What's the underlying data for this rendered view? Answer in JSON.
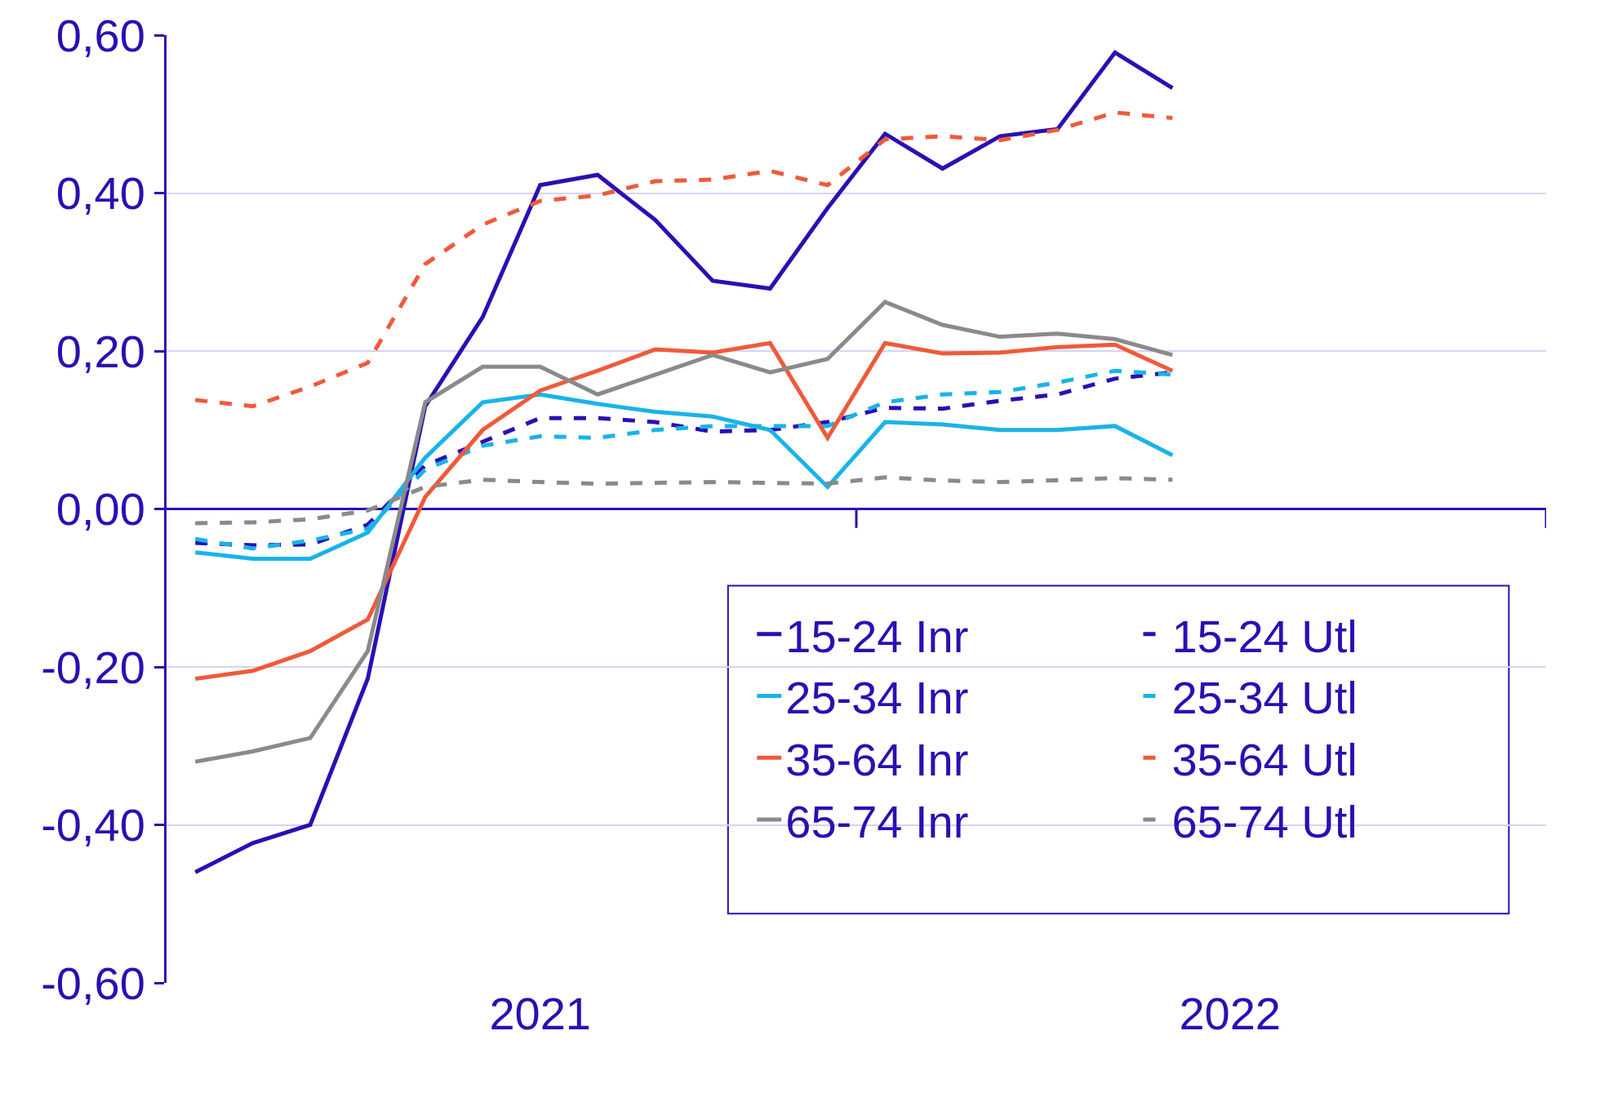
{
  "chart_data": {
    "type": "line",
    "categories": [
      null,
      null,
      null,
      null,
      null,
      null,
      "2021",
      null,
      null,
      null,
      null,
      null,
      null,
      null,
      null,
      null,
      null,
      null,
      "2022",
      null,
      null,
      null,
      null,
      null
    ],
    "series": [
      {
        "name": "15-24 Inr",
        "color": "#2b0fb3",
        "line_style": "solid",
        "values": [
          -0.46,
          -0.423,
          -0.4,
          -0.215,
          0.13,
          0.243,
          0.41,
          0.423,
          0.366,
          0.289,
          0.279,
          0.381,
          0.475,
          0.431,
          0.472,
          0.481,
          0.578,
          0.533,
          null,
          null,
          null,
          null,
          null,
          null
        ]
      },
      {
        "name": "15-24 Utl",
        "color": "#2b0fb3",
        "line_style": "dash",
        "values": [
          -0.043,
          -0.046,
          -0.045,
          -0.02,
          0.055,
          0.085,
          0.115,
          0.115,
          0.11,
          0.098,
          0.1,
          0.11,
          0.128,
          0.127,
          0.137,
          0.145,
          0.165,
          0.173,
          null,
          null,
          null,
          null,
          null,
          null
        ]
      },
      {
        "name": "25-34 Inr",
        "color": "#1ab3e8",
        "line_style": "solid",
        "values": [
          -0.055,
          -0.063,
          -0.063,
          -0.03,
          0.065,
          0.135,
          0.145,
          0.133,
          0.123,
          0.117,
          0.1,
          0.028,
          0.11,
          0.107,
          0.1,
          0.1,
          0.105,
          0.068,
          null,
          null,
          null,
          null,
          null,
          null
        ]
      },
      {
        "name": "25-34 Utl",
        "color": "#1ab3e8",
        "line_style": "dash",
        "values": [
          -0.038,
          -0.05,
          -0.04,
          -0.025,
          0.05,
          0.08,
          0.092,
          0.09,
          0.1,
          0.105,
          0.105,
          0.105,
          0.135,
          0.145,
          0.148,
          0.16,
          0.175,
          0.17,
          null,
          null,
          null,
          null,
          null,
          null
        ]
      },
      {
        "name": "35-64 Inr",
        "color": "#ef5a3a",
        "line_style": "solid",
        "values": [
          -0.215,
          -0.205,
          -0.18,
          -0.14,
          0.015,
          0.1,
          0.15,
          0.175,
          0.202,
          0.198,
          0.21,
          0.09,
          0.21,
          0.197,
          0.198,
          0.205,
          0.208,
          0.175,
          null,
          null,
          null,
          null,
          null,
          null
        ]
      },
      {
        "name": "35-64 Utl",
        "color": "#ef5a3a",
        "line_style": "dash",
        "values": [
          0.138,
          0.13,
          0.155,
          0.185,
          0.31,
          0.36,
          0.39,
          0.397,
          0.415,
          0.417,
          0.428,
          0.41,
          0.468,
          0.472,
          0.467,
          0.48,
          0.502,
          0.495,
          null,
          null,
          null,
          null,
          null,
          null
        ]
      },
      {
        "name": "65-74 Inr",
        "color": "#8a8a8a",
        "line_style": "solid",
        "values": [
          -0.32,
          -0.307,
          -0.29,
          -0.18,
          0.135,
          0.18,
          0.18,
          0.145,
          0.17,
          0.195,
          0.173,
          0.19,
          0.262,
          0.233,
          0.218,
          0.222,
          0.215,
          0.195,
          null,
          null,
          null,
          null,
          null,
          null
        ]
      },
      {
        "name": "65-74 Utl",
        "color": "#8a8a8a",
        "line_style": "dash",
        "values": [
          -0.018,
          -0.017,
          -0.013,
          -0.002,
          0.028,
          0.037,
          0.034,
          0.032,
          0.033,
          0.034,
          0.033,
          0.032,
          0.04,
          0.036,
          0.034,
          0.037,
          0.039,
          0.037,
          null,
          null,
          null,
          null,
          null,
          null
        ]
      }
    ],
    "ylim": [
      -0.6,
      0.6
    ],
    "yticks": [
      {
        "value": -0.6,
        "label": "-0,60"
      },
      {
        "value": -0.4,
        "label": "-0,40"
      },
      {
        "value": -0.2,
        "label": "-0,20"
      },
      {
        "value": 0,
        "label": "0,00"
      },
      {
        "value": 0.2,
        "label": "0,20"
      },
      {
        "value": 0.4,
        "label": "0,40"
      },
      {
        "value": 0.6,
        "label": "0,60"
      }
    ],
    "grid": true,
    "legend": "lower right"
  }
}
